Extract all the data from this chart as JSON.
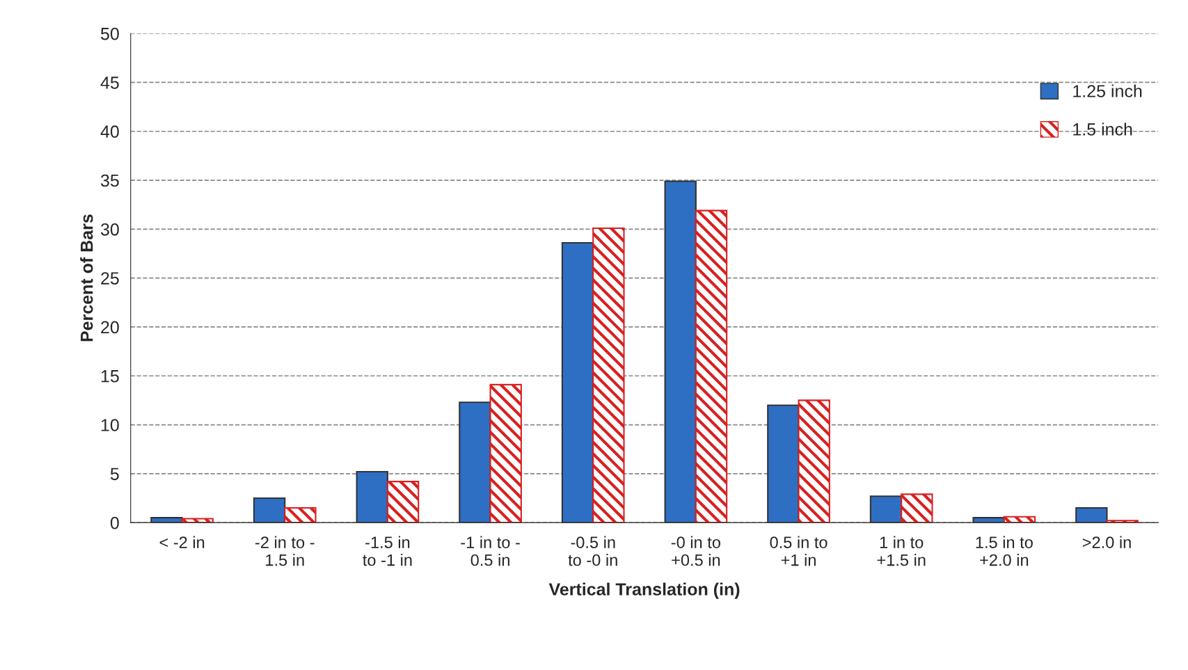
{
  "chart_data": {
    "type": "bar",
    "xlabel": "Vertical Translation (in)",
    "ylabel": "Percent of Bars",
    "categories": [
      "< -2 in",
      "-2 in to -\n1.5 in",
      "-1.5 in\nto -1 in",
      "-1 in to -\n0.5 in",
      "-0.5 in\nto -0 in",
      "-0 in to\n+0.5 in",
      "0.5 in to\n+1 in",
      "1 in to\n+1.5 in",
      "1.5 in to\n+2.0 in",
      ">2.0 in"
    ],
    "series": [
      {
        "name": "1.25 inch",
        "color": "#2e6fc4",
        "values": [
          0.5,
          2.5,
          5.2,
          12.3,
          28.6,
          34.9,
          12.0,
          2.7,
          0.5,
          1.5
        ]
      },
      {
        "name": "1.5 inch",
        "color": "#d92020",
        "values": [
          0.4,
          1.5,
          4.2,
          14.1,
          30.1,
          31.9,
          12.5,
          2.9,
          0.6,
          0.2
        ]
      }
    ],
    "ylim": [
      0,
      50
    ],
    "yticks": [
      0,
      5,
      10,
      15,
      20,
      25,
      30,
      35,
      40,
      45,
      50
    ],
    "grid": "y",
    "legend": "top right"
  }
}
